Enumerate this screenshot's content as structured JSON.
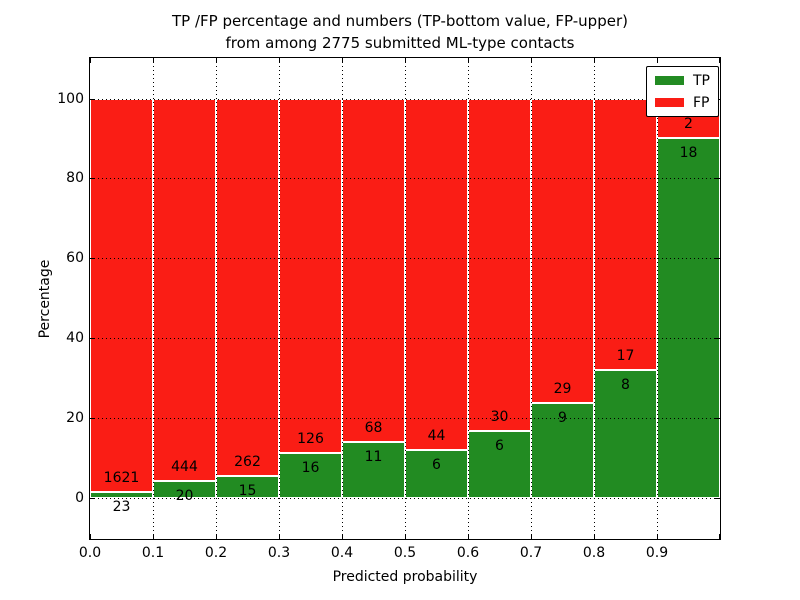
{
  "figure": {
    "title_line1": "TP /FP percentage and numbers (TP-bottom value, FP-upper)",
    "title_line2": "from among 2775 submitted ML-type contacts"
  },
  "axes": {
    "x_label": "Predicted probability",
    "y_label": "Percentage",
    "x_tick_labels": [
      "0.0",
      "0.1",
      "0.2",
      "0.3",
      "0.4",
      "0.5",
      "0.6",
      "0.7",
      "0.8",
      "0.9"
    ],
    "y_tick_labels": [
      "0",
      "20",
      "40",
      "60",
      "80",
      "100"
    ]
  },
  "legend": {
    "items": [
      {
        "label": "TP",
        "color": "#228b22"
      },
      {
        "label": "FP",
        "color": "#fa1d15"
      }
    ]
  },
  "colors": {
    "tp": "#228b22",
    "fp": "#fa1d15",
    "bar_edge": "#ffffff",
    "grid": "#000000"
  },
  "chart_data": {
    "type": "bar",
    "stacked": true,
    "normalized": "percent of contacts per bin",
    "title": "TP /FP percentage and numbers (TP-bottom value, FP-upper) from among 2775 submitted ML-type contacts",
    "xlabel": "Predicted probability",
    "ylabel": "Percentage",
    "total_submitted_contacts": 2775,
    "bin_width": 0.1,
    "bin_start": [
      0.0,
      0.1,
      0.2,
      0.3,
      0.4,
      0.5,
      0.6,
      0.7,
      0.8,
      0.9
    ],
    "categories": [
      "0.0-0.1",
      "0.1-0.2",
      "0.2-0.3",
      "0.3-0.4",
      "0.4-0.5",
      "0.5-0.6",
      "0.6-0.7",
      "0.7-0.8",
      "0.8-0.9",
      "0.9-1.0"
    ],
    "series": [
      {
        "name": "TP",
        "counts": [
          23,
          20,
          15,
          16,
          11,
          6,
          6,
          9,
          8,
          18
        ],
        "percent": [
          1.4,
          4.31,
          5.42,
          11.27,
          13.92,
          12.0,
          16.67,
          23.68,
          32.0,
          90.0
        ]
      },
      {
        "name": "FP",
        "counts": [
          1621,
          444,
          262,
          126,
          68,
          44,
          30,
          29,
          17,
          2
        ],
        "percent": [
          98.6,
          95.69,
          94.58,
          88.73,
          86.08,
          88.0,
          83.33,
          76.32,
          68.0,
          10.0
        ]
      }
    ],
    "xlim": [
      0.0,
      1.0
    ],
    "ylim_display": [
      -10.3,
      110.1
    ],
    "grid": true,
    "grid_style": "dotted",
    "legend_position": "upper right",
    "annotation_rule": "FP count above TP/FP boundary, TP count below boundary"
  }
}
